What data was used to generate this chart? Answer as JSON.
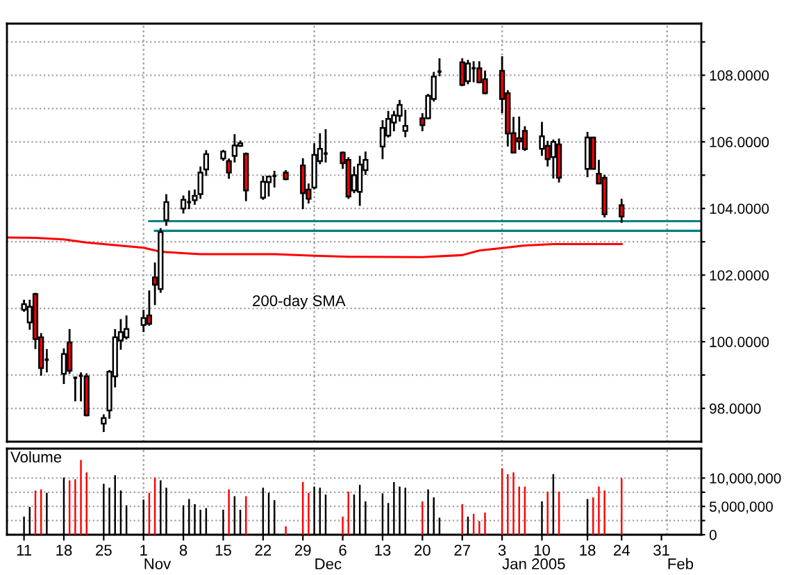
{
  "chart_data": [
    {
      "type": "candlestick",
      "x": [
        "2004-10-11",
        "2004-10-12",
        "2004-10-13",
        "2004-10-14",
        "2004-10-15",
        "2004-10-18",
        "2004-10-19",
        "2004-10-20",
        "2004-10-21",
        "2004-10-22",
        "2004-10-25",
        "2004-10-26",
        "2004-10-27",
        "2004-10-28",
        "2004-10-29",
        "2004-11-01",
        "2004-11-02",
        "2004-11-03",
        "2004-11-04",
        "2004-11-05",
        "2004-11-08",
        "2004-11-09",
        "2004-11-10",
        "2004-11-11",
        "2004-11-12",
        "2004-11-15",
        "2004-11-16",
        "2004-11-17",
        "2004-11-18",
        "2004-11-19",
        "2004-11-22",
        "2004-11-23",
        "2004-11-24",
        "2004-11-26",
        "2004-11-29",
        "2004-11-30",
        "2004-12-01",
        "2004-12-02",
        "2004-12-03",
        "2004-12-06",
        "2004-12-07",
        "2004-12-08",
        "2004-12-09",
        "2004-12-10",
        "2004-12-13",
        "2004-12-14",
        "2004-12-15",
        "2004-12-16",
        "2004-12-17",
        "2004-12-20",
        "2004-12-21",
        "2004-12-22",
        "2004-12-23",
        "2004-12-27",
        "2004-12-28",
        "2004-12-29",
        "2004-12-30",
        "2004-12-31",
        "2005-01-03",
        "2005-01-04",
        "2005-01-05",
        "2005-01-06",
        "2005-01-07",
        "2005-01-10",
        "2005-01-11",
        "2005-01-12",
        "2005-01-13",
        "2005-01-18",
        "2005-01-19",
        "2005-01-20",
        "2005-01-21",
        "2005-01-24"
      ],
      "ohlc": [
        [
          100.96,
          101.26,
          100.9,
          101.13
        ],
        [
          100.58,
          101.26,
          100.36,
          101.05
        ],
        [
          101.43,
          101.47,
          99.78,
          100.08
        ],
        [
          100.13,
          100.26,
          98.98,
          99.21
        ],
        [
          99.46,
          99.78,
          99.08,
          99.46
        ],
        [
          99.04,
          99.8,
          98.73,
          99.63
        ],
        [
          99.98,
          100.38,
          99.04,
          99.13
        ],
        [
          98.92,
          98.92,
          98.21,
          98.92
        ],
        [
          98.98,
          99.08,
          98.21,
          98.98
        ],
        [
          98.96,
          99.05,
          97.76,
          97.79
        ],
        [
          97.54,
          97.82,
          97.29,
          97.71
        ],
        [
          97.94,
          99.15,
          97.69,
          99.1
        ],
        [
          98.96,
          100.38,
          98.63,
          100.13
        ],
        [
          100.04,
          100.68,
          99.76,
          100.29
        ],
        [
          100.13,
          100.79,
          100.07,
          100.38
        ],
        [
          100.5,
          100.96,
          100.29,
          100.71
        ],
        [
          100.79,
          101.54,
          100.48,
          100.54
        ],
        [
          101.93,
          102.38,
          101.1,
          101.71
        ],
        [
          101.58,
          103.41,
          101.47,
          103.29
        ],
        [
          103.65,
          104.43,
          103.48,
          104.19
        ],
        [
          104.0,
          104.39,
          103.85,
          104.26
        ],
        [
          104.19,
          104.54,
          103.98,
          104.19
        ],
        [
          104.25,
          104.57,
          104.11,
          104.38
        ],
        [
          104.43,
          105.26,
          104.29,
          105.08
        ],
        [
          105.17,
          105.75,
          104.98,
          105.63
        ],
        [
          105.5,
          105.76,
          105.43,
          105.71
        ],
        [
          105.42,
          105.5,
          104.89,
          105.08
        ],
        [
          105.58,
          106.23,
          105.38,
          105.89
        ],
        [
          105.88,
          106.04,
          105.85,
          105.96
        ],
        [
          105.64,
          105.68,
          104.22,
          104.54
        ],
        [
          104.32,
          104.98,
          104.26,
          104.8
        ],
        [
          104.79,
          104.98,
          104.36,
          104.96
        ],
        [
          104.98,
          105.13,
          104.63,
          104.98
        ],
        [
          105.08,
          105.15,
          104.85,
          104.88
        ],
        [
          105.29,
          105.51,
          103.98,
          104.46
        ],
        [
          104.57,
          104.75,
          104.15,
          104.29
        ],
        [
          104.63,
          105.96,
          104.57,
          105.61
        ],
        [
          105.42,
          106.26,
          105.33,
          105.79
        ],
        [
          105.65,
          106.38,
          105.38,
          105.65
        ],
        [
          105.68,
          105.71,
          105.19,
          105.36
        ],
        [
          105.46,
          105.54,
          104.29,
          104.36
        ],
        [
          104.54,
          105.26,
          104.46,
          105.0
        ],
        [
          104.5,
          105.58,
          104.08,
          105.32
        ],
        [
          105.15,
          105.71,
          105.01,
          105.46
        ],
        [
          105.86,
          106.65,
          105.48,
          106.42
        ],
        [
          106.19,
          106.93,
          106.13,
          106.69
        ],
        [
          106.58,
          106.93,
          106.32,
          106.8
        ],
        [
          106.78,
          107.26,
          106.61,
          107.11
        ],
        [
          106.33,
          106.96,
          106.14,
          106.48
        ],
        [
          106.71,
          106.86,
          106.32,
          106.5
        ],
        [
          106.71,
          107.44,
          106.68,
          107.38
        ],
        [
          107.29,
          108.1,
          107.21,
          107.96
        ],
        [
          108.11,
          108.51,
          107.97,
          108.11
        ],
        [
          108.39,
          108.51,
          107.67,
          107.71
        ],
        [
          107.82,
          108.46,
          107.73,
          108.35
        ],
        [
          108.21,
          108.42,
          107.79,
          108.21
        ],
        [
          108.21,
          108.42,
          107.76,
          107.79
        ],
        [
          107.88,
          108.14,
          107.43,
          107.46
        ],
        [
          108.13,
          108.57,
          106.86,
          107.29
        ],
        [
          107.46,
          107.55,
          105.86,
          106.25
        ],
        [
          106.26,
          106.75,
          105.65,
          105.68
        ],
        [
          106.11,
          106.76,
          105.76,
          106.01
        ],
        [
          106.33,
          106.47,
          105.73,
          105.78
        ],
        [
          105.79,
          106.6,
          105.58,
          106.17
        ],
        [
          105.88,
          106.03,
          105.26,
          105.48
        ],
        [
          105.54,
          106.07,
          104.9,
          106.0
        ],
        [
          105.92,
          106.1,
          104.78,
          104.92
        ],
        [
          105.19,
          106.3,
          104.94,
          106.13
        ],
        [
          106.13,
          106.15,
          105.19,
          105.19
        ],
        [
          105.04,
          105.46,
          104.75,
          104.75
        ],
        [
          104.92,
          105.01,
          103.73,
          103.83
        ],
        [
          104.1,
          104.29,
          103.57,
          103.76
        ]
      ],
      "colors": [
        "#ffffff",
        "#ffffff",
        "#ff0000",
        "#ff0000",
        "#000000",
        "#ffffff",
        "#ff0000",
        "#000000",
        "#000000",
        "#ff0000",
        "#ffffff",
        "#ffffff",
        "#ffffff",
        "#ffffff",
        "#ffffff",
        "#ffffff",
        "#ff0000",
        "#ff0000",
        "#ffffff",
        "#ffffff",
        "#ffffff",
        "#000000",
        "#ffffff",
        "#ffffff",
        "#ffffff",
        "#ffffff",
        "#ff0000",
        "#ffffff",
        "#ffffff",
        "#ff0000",
        "#ffffff",
        "#ffffff",
        "#000000",
        "#ff0000",
        "#ff0000",
        "#ff0000",
        "#ffffff",
        "#ffffff",
        "#000000",
        "#ff0000",
        "#ff0000",
        "#ffffff",
        "#ffffff",
        "#ffffff",
        "#ffffff",
        "#ffffff",
        "#ffffff",
        "#ffffff",
        "#ffffff",
        "#ff0000",
        "#ffffff",
        "#ffffff",
        "#000000",
        "#ff0000",
        "#ffffff",
        "#000000",
        "#ff0000",
        "#ff0000",
        "#ff0000",
        "#ff0000",
        "#ff0000",
        "#ff0000",
        "#ff0000",
        "#ffffff",
        "#ff0000",
        "#ffffff",
        "#ff0000",
        "#ffffff",
        "#ff0000",
        "#ff0000",
        "#ff0000",
        "#ff0000"
      ],
      "series": [
        {
          "type": "line",
          "name": "200-day SMA",
          "color": "#ff0000",
          "x": [
            "2004-10-08",
            "2004-10-13",
            "2004-10-18",
            "2004-10-22",
            "2004-10-27",
            "2004-11-01",
            "2004-11-04",
            "2004-11-11",
            "2004-11-24",
            "2004-12-01",
            "2004-12-07",
            "2004-12-20",
            "2004-12-27",
            "2004-12-30",
            "2005-01-04",
            "2005-01-07",
            "2005-01-12",
            "2005-01-24"
          ],
          "values": [
            103.13,
            103.12,
            103.07,
            102.98,
            102.9,
            102.82,
            102.7,
            102.63,
            102.63,
            102.58,
            102.55,
            102.54,
            102.6,
            102.74,
            102.83,
            102.89,
            102.93,
            102.93
          ]
        },
        {
          "type": "line",
          "color": "#008080",
          "x": [
            "2004-11-02",
            "2005-02-07"
          ],
          "values": [
            103.62,
            103.62
          ]
        },
        {
          "type": "line",
          "color": "#008080",
          "x": [
            "2004-11-03",
            "2005-02-07"
          ],
          "values": [
            103.33,
            103.33
          ]
        }
      ],
      "xlim": [
        "2004-10-08",
        "2005-02-07"
      ],
      "ylim": [
        97.0,
        109.55
      ],
      "yticks": [
        {
          "value": 98,
          "label": "98.0000"
        },
        {
          "value": 99,
          "label": null
        },
        {
          "value": 100,
          "label": "100.0000"
        },
        {
          "value": 101,
          "label": null
        },
        {
          "value": 102,
          "label": "102.0000"
        },
        {
          "value": 103,
          "label": null
        },
        {
          "value": 104,
          "label": "104.0000"
        },
        {
          "value": 105,
          "label": null
        },
        {
          "value": 106,
          "label": "106.0000"
        },
        {
          "value": 107,
          "label": null
        },
        {
          "value": 108,
          "label": "108.0000"
        },
        {
          "value": 109,
          "label": null
        }
      ],
      "tick_labels": "y",
      "grid": "y",
      "ref_lines": [
        {
          "axis": "x",
          "value": "2004-11-01",
          "color": "#a0a0a0",
          "line_style": "dotted"
        },
        {
          "axis": "x",
          "value": "2004-12-01",
          "color": "#a0a0a0",
          "line_style": "dotted"
        },
        {
          "axis": "x",
          "value": "2005-01-03",
          "color": "#a0a0a0",
          "line_style": "dotted"
        },
        {
          "axis": "x",
          "value": "2005-02-01",
          "color": "#a0a0a0",
          "line_style": "dotted"
        }
      ]
    },
    {
      "type": "bar",
      "title": "Volume",
      "x": [
        "2004-10-11",
        "2004-10-12",
        "2004-10-13",
        "2004-10-14",
        "2004-10-15",
        "2004-10-18",
        "2004-10-19",
        "2004-10-20",
        "2004-10-21",
        "2004-10-22",
        "2004-10-25",
        "2004-10-26",
        "2004-10-27",
        "2004-10-28",
        "2004-10-29",
        "2004-11-01",
        "2004-11-02",
        "2004-11-03",
        "2004-11-04",
        "2004-11-05",
        "2004-11-08",
        "2004-11-09",
        "2004-11-10",
        "2004-11-11",
        "2004-11-12",
        "2004-11-15",
        "2004-11-16",
        "2004-11-17",
        "2004-11-18",
        "2004-11-19",
        "2004-11-22",
        "2004-11-23",
        "2004-11-24",
        "2004-11-26",
        "2004-11-29",
        "2004-11-30",
        "2004-12-01",
        "2004-12-02",
        "2004-12-03",
        "2004-12-06",
        "2004-12-07",
        "2004-12-08",
        "2004-12-09",
        "2004-12-10",
        "2004-12-13",
        "2004-12-14",
        "2004-12-15",
        "2004-12-16",
        "2004-12-17",
        "2004-12-20",
        "2004-12-21",
        "2004-12-22",
        "2004-12-23",
        "2004-12-27",
        "2004-12-28",
        "2004-12-29",
        "2004-12-30",
        "2004-12-31",
        "2005-01-03",
        "2005-01-04",
        "2005-01-05",
        "2005-01-06",
        "2005-01-07",
        "2005-01-10",
        "2005-01-11",
        "2005-01-12",
        "2005-01-13",
        "2005-01-18",
        "2005-01-19",
        "2005-01-20",
        "2005-01-21",
        "2005-01-24"
      ],
      "values": [
        3200000,
        4900000,
        7800000,
        8000000,
        7400000,
        10100000,
        9600000,
        9800000,
        13200000,
        11000000,
        9000000,
        8300000,
        10500000,
        7800000,
        5200000,
        6200000,
        7400000,
        10100000,
        9600000,
        8300000,
        5200000,
        6300000,
        5400000,
        4400000,
        4700000,
        4400000,
        8000000,
        6800000,
        4400000,
        6800000,
        8300000,
        7400000,
        6100000,
        1500000,
        9300000,
        7400000,
        8500000,
        8300000,
        7100000,
        3200000,
        7600000,
        7100000,
        8800000,
        5900000,
        7300000,
        5600000,
        9300000,
        8500000,
        8300000,
        5900000,
        8000000,
        6600000,
        3000000,
        5400000,
        3200000,
        3700000,
        2400000,
        3900000,
        11700000,
        10700000,
        11000000,
        8500000,
        8500000,
        5900000,
        7600000,
        10700000,
        7600000,
        6300000,
        6600000,
        8500000,
        7800000,
        10000000
      ],
      "colors": [
        "#000000",
        "#000000",
        "#ff0000",
        "#ff0000",
        "#000000",
        "#000000",
        "#ff0000",
        "#ff0000",
        "#ff0000",
        "#ff0000",
        "#000000",
        "#000000",
        "#000000",
        "#000000",
        "#000000",
        "#000000",
        "#ff0000",
        "#ff0000",
        "#000000",
        "#000000",
        "#000000",
        "#000000",
        "#000000",
        "#000000",
        "#000000",
        "#000000",
        "#ff0000",
        "#000000",
        "#000000",
        "#ff0000",
        "#000000",
        "#000000",
        "#000000",
        "#ff0000",
        "#ff0000",
        "#ff0000",
        "#000000",
        "#000000",
        "#000000",
        "#ff0000",
        "#ff0000",
        "#000000",
        "#000000",
        "#000000",
        "#000000",
        "#000000",
        "#000000",
        "#000000",
        "#000000",
        "#ff0000",
        "#000000",
        "#000000",
        "#000000",
        "#ff0000",
        "#000000",
        "#ff0000",
        "#ff0000",
        "#ff0000",
        "#ff0000",
        "#ff0000",
        "#ff0000",
        "#ff0000",
        "#ff0000",
        "#000000",
        "#ff0000",
        "#000000",
        "#ff0000",
        "#000000",
        "#ff0000",
        "#ff0000",
        "#ff0000",
        "#ff0000"
      ],
      "xlim": [
        "2004-10-08",
        "2005-02-07"
      ],
      "xticks": [
        {
          "value": "2004-10-11",
          "label": "11"
        },
        {
          "value": "2004-10-18",
          "label": "18"
        },
        {
          "value": "2004-10-25",
          "label": "25"
        },
        {
          "value": "2004-11-01",
          "label": "1"
        },
        {
          "value": "2004-11-08",
          "label": "8"
        },
        {
          "value": "2004-11-15",
          "label": "15"
        },
        {
          "value": "2004-11-22",
          "label": "22"
        },
        {
          "value": "2004-11-29",
          "label": "29"
        },
        {
          "value": "2004-12-06",
          "label": "6"
        },
        {
          "value": "2004-12-13",
          "label": "13"
        },
        {
          "value": "2004-12-20",
          "label": "20"
        },
        {
          "value": "2004-12-27",
          "label": "27"
        },
        {
          "value": "2005-01-03",
          "label": "3"
        },
        {
          "value": "2005-01-10",
          "label": "10"
        },
        {
          "value": "2005-01-18",
          "label": "18"
        },
        {
          "value": "2005-01-24",
          "label": "24"
        },
        {
          "value": "2005-01-31",
          "label": "31"
        }
      ],
      "ylim": [
        0,
        15200000
      ],
      "yticks": [
        {
          "value": 0,
          "label": "0"
        },
        {
          "value": 2500000,
          "label": null
        },
        {
          "value": 5000000,
          "label": "5,000,000"
        },
        {
          "value": 7500000,
          "label": null
        },
        {
          "value": 10000000,
          "label": "10,000,000"
        }
      ],
      "grid": "y",
      "ref_lines": [
        {
          "axis": "x",
          "value": "2004-11-01",
          "label": "Nov",
          "color": "#a0a0a0",
          "line_style": "dotted"
        },
        {
          "axis": "x",
          "value": "2004-12-01",
          "label": "Dec",
          "color": "#a0a0a0",
          "line_style": "dotted"
        },
        {
          "axis": "x",
          "value": "2005-01-03",
          "label": "Jan 2005",
          "color": "#a0a0a0",
          "line_style": "dotted"
        },
        {
          "axis": "x",
          "value": "2005-02-01",
          "label": "Feb",
          "color": "#a0a0a0",
          "line_style": "dotted"
        }
      ]
    }
  ]
}
